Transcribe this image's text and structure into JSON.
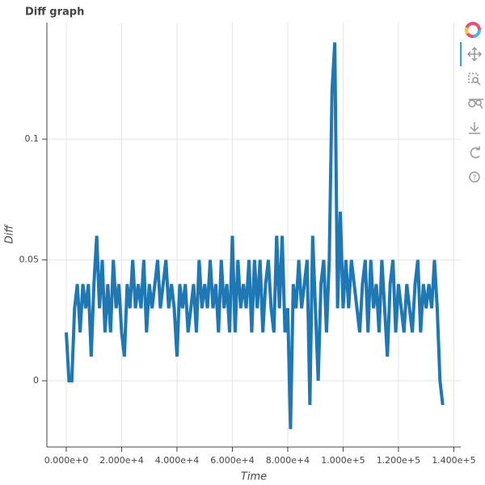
{
  "chart_data": {
    "type": "line",
    "title": "Diff graph",
    "x_label": "Time",
    "y_label": "Diff",
    "x": [
      0,
      1000,
      2000,
      3000,
      4000,
      5000,
      6000,
      7000,
      8000,
      9000,
      10000,
      11000,
      12000,
      13000,
      14000,
      15000,
      16000,
      17000,
      18000,
      19000,
      20000,
      21000,
      22000,
      23000,
      24000,
      25000,
      26000,
      27000,
      28000,
      29000,
      30000,
      31000,
      32000,
      33000,
      34000,
      35000,
      36000,
      37000,
      38000,
      39000,
      40000,
      41000,
      42000,
      43000,
      44000,
      45000,
      46000,
      47000,
      48000,
      49000,
      50000,
      51000,
      52000,
      53000,
      54000,
      55000,
      56000,
      57000,
      58000,
      59000,
      60000,
      61000,
      62000,
      63000,
      64000,
      65000,
      66000,
      67000,
      68000,
      69000,
      70000,
      71000,
      72000,
      73000,
      74000,
      75000,
      76000,
      77000,
      78000,
      79000,
      80000,
      81000,
      82000,
      83000,
      84000,
      85000,
      86000,
      87000,
      88000,
      89000,
      90000,
      91000,
      92000,
      93000,
      94000,
      95000,
      96000,
      97000,
      98000,
      99000,
      100000,
      101000,
      102000,
      103000,
      104000,
      105000,
      106000,
      107000,
      108000,
      109000,
      110000,
      111000,
      112000,
      113000,
      114000,
      115000,
      116000,
      117000,
      118000,
      119000,
      120000,
      121000,
      122000,
      123000,
      124000,
      125000,
      126000,
      127000,
      128000,
      129000,
      130000,
      131000,
      132000,
      133000,
      134000,
      135000,
      136000
    ],
    "series": [
      {
        "color": "#1f77b4",
        "values": [
          0.02,
          0,
          0,
          0.03,
          0.04,
          0.02,
          0.04,
          0.03,
          0.04,
          0.01,
          0.04,
          0.06,
          0.03,
          0.05,
          0.02,
          0.04,
          0.02,
          0.05,
          0.03,
          0.04,
          0.02,
          0.01,
          0.04,
          0.03,
          0.05,
          0.03,
          0.04,
          0.03,
          0.05,
          0.02,
          0.04,
          0.03,
          0.04,
          0.05,
          0.03,
          0.04,
          0.05,
          0.03,
          0.04,
          0.03,
          0.01,
          0.04,
          0.03,
          0.04,
          0.02,
          0.03,
          0.04,
          0.02,
          0.05,
          0.03,
          0.04,
          0.03,
          0.05,
          0.03,
          0.04,
          0.02,
          0.05,
          0.03,
          0.04,
          0.02,
          0.06,
          0.02,
          0.05,
          0.03,
          0.04,
          0.03,
          0.05,
          0.02,
          0.05,
          0.03,
          0.05,
          0.02,
          0.04,
          0.05,
          0.03,
          0.02,
          0.06,
          0.03,
          0.06,
          0.02,
          0.03,
          -0.02,
          0.04,
          0.03,
          0.05,
          0.03,
          0.04,
          0.05,
          -0.01,
          0.06,
          0.03,
          0,
          0.04,
          0.05,
          0.02,
          0.05,
          0.12,
          0.14,
          0.03,
          0.07,
          0.03,
          0.05,
          0.03,
          0.05,
          0.04,
          0.03,
          0.02,
          0.04,
          0.05,
          0.02,
          0.05,
          0.03,
          0.04,
          0.02,
          0.05,
          0.03,
          0.01,
          0.04,
          0.05,
          0.02,
          0.04,
          0.03,
          0.02,
          0.04,
          0.03,
          0.02,
          0.04,
          0.05,
          0.02,
          0.04,
          0.03,
          0.04,
          0.03,
          0.05,
          0.03,
          0,
          -0.01
        ]
      }
    ],
    "xlim": [
      -7000,
      142500
    ],
    "xticks": [
      {
        "value": 0,
        "label": "0.000e+0"
      },
      {
        "value": 20000,
        "label": "2.000e+4"
      },
      {
        "value": 40000,
        "label": "4.000e+4"
      },
      {
        "value": 60000,
        "label": "6.000e+4"
      },
      {
        "value": 80000,
        "label": "8.000e+4"
      },
      {
        "value": 100000,
        "label": "1.000e+5"
      },
      {
        "value": 120000,
        "label": "1.200e+5"
      },
      {
        "value": 140000,
        "label": "1.400e+5"
      }
    ],
    "ylim": [
      -0.0274,
      0.1482
    ],
    "yticks": [
      0,
      0.05,
      0.1
    ],
    "grid": true
  }
}
